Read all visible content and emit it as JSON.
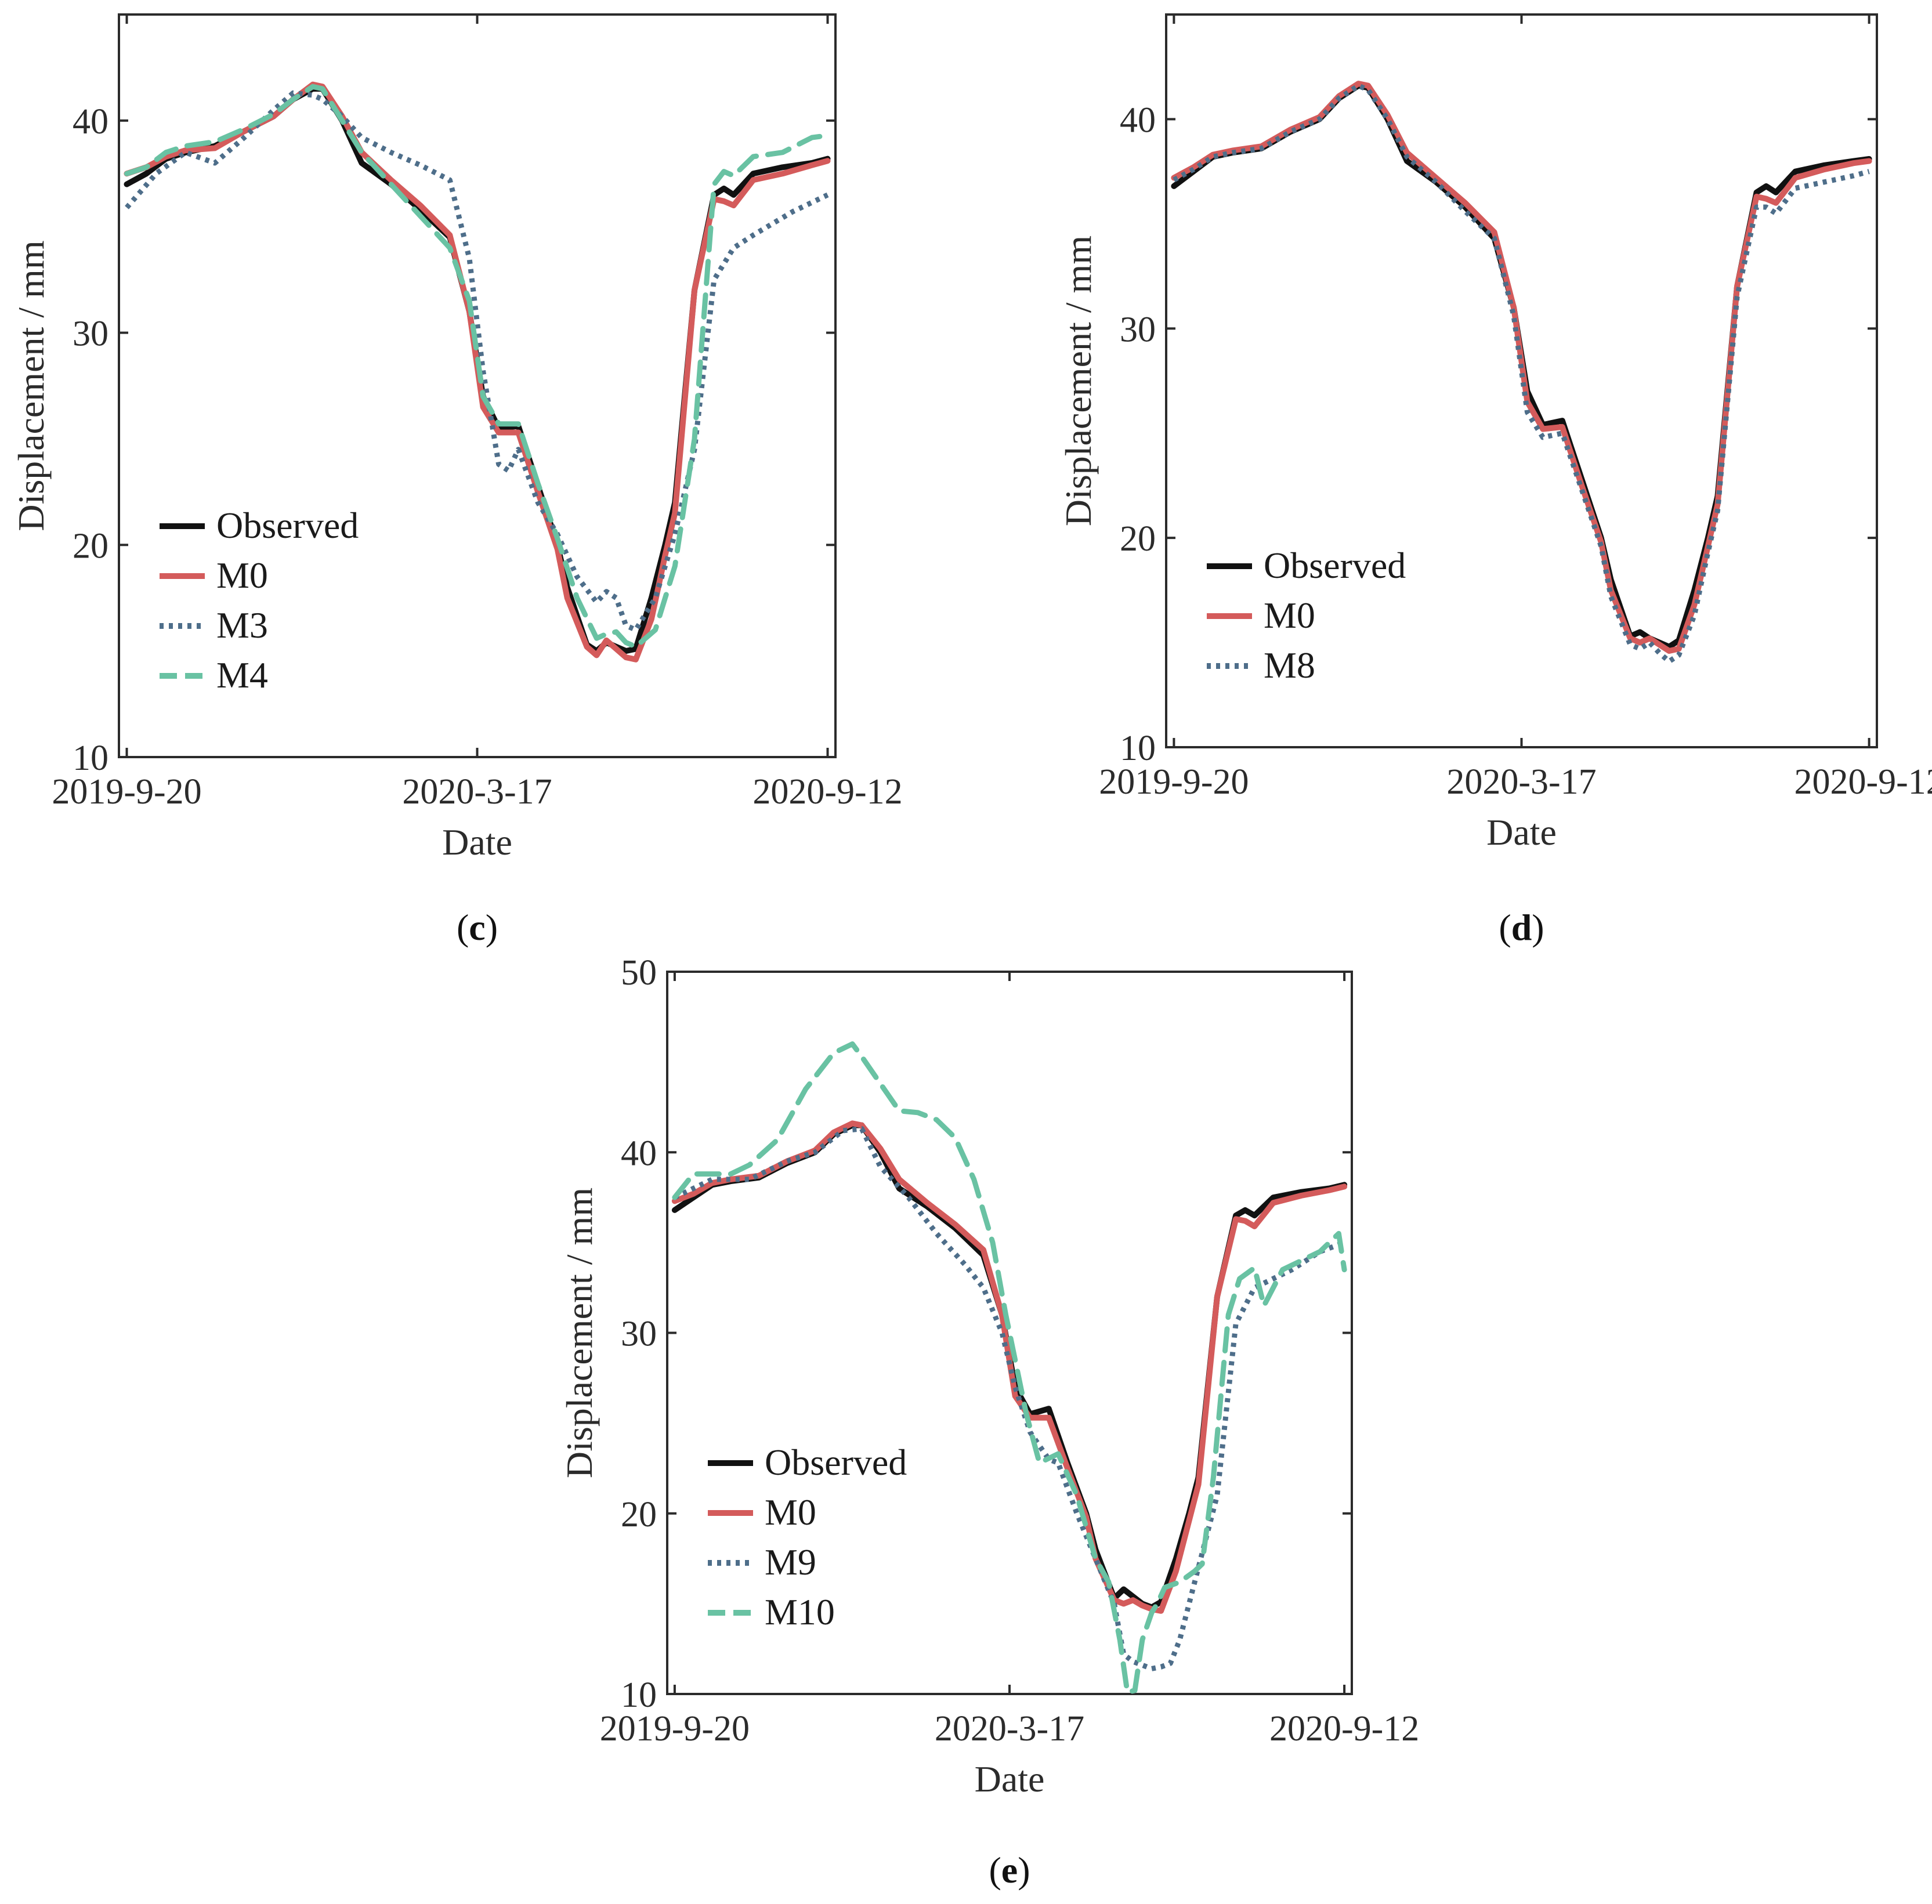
{
  "figure": {
    "colors": {
      "Observed": "#111111",
      "M0": "#d45b5b",
      "M3": "#4e6e8a",
      "M4": "#69c2a3",
      "M8": "#4e6e8a",
      "M9": "#4e6e8a",
      "M10": "#69c2a3"
    },
    "styles": {
      "Observed": "solid",
      "M0": "solid",
      "M3": "dotted",
      "M4": "dashed",
      "M8": "dotted",
      "M9": "dotted",
      "M10": "dashed"
    }
  },
  "chart_data": [
    {
      "id": "c",
      "panel_label": "c",
      "type": "line",
      "xlabel": "Date",
      "ylabel": "Displacement / mm",
      "ylim": [
        10,
        45
      ],
      "yticks": [
        10,
        20,
        30,
        40
      ],
      "xlim": [
        -4,
        362
      ],
      "xtick_positions": [
        0,
        179,
        358
      ],
      "xtick_labels": [
        "2019-9-20",
        "2020-3-17",
        "2020-9-12"
      ],
      "legend_position": "lower-left",
      "series": [
        {
          "name": "Observed",
          "x": [
            0,
            10,
            20,
            30,
            45,
            60,
            75,
            85,
            95,
            100,
            110,
            120,
            135,
            150,
            165,
            175,
            182,
            190,
            200,
            210,
            220,
            225,
            235,
            240,
            245,
            250,
            255,
            260,
            268,
            275,
            280,
            290,
            300,
            305,
            310,
            320,
            335,
            350,
            358
          ],
          "y": [
            37,
            37.5,
            38.2,
            38.5,
            38.8,
            39.5,
            40.2,
            41,
            41.5,
            41.5,
            40,
            38,
            37,
            35.8,
            34.5,
            31,
            27,
            25.5,
            25.6,
            22.8,
            20,
            18,
            15.3,
            15,
            15.4,
            15.2,
            15,
            15.1,
            17.5,
            20,
            22,
            32,
            36.5,
            36.8,
            36.5,
            37.5,
            37.8,
            38,
            38.2
          ]
        },
        {
          "name": "M0",
          "x": [
            0,
            10,
            20,
            30,
            45,
            60,
            75,
            85,
            95,
            100,
            110,
            120,
            135,
            150,
            165,
            175,
            182,
            190,
            200,
            210,
            220,
            225,
            235,
            240,
            245,
            250,
            255,
            260,
            268,
            275,
            280,
            290,
            300,
            305,
            310,
            320,
            335,
            350,
            358
          ],
          "y": [
            37.5,
            37.8,
            38.3,
            38.6,
            38.7,
            39.5,
            40.2,
            41,
            41.7,
            41.6,
            40.2,
            38.5,
            37.2,
            36,
            34.6,
            31,
            26.5,
            25.3,
            25.3,
            22.5,
            19.8,
            17.5,
            15.2,
            14.8,
            15.5,
            15.1,
            14.7,
            14.6,
            16.5,
            19.5,
            21.5,
            32,
            36.3,
            36.2,
            36,
            37.2,
            37.5,
            37.9,
            38.1
          ]
        },
        {
          "name": "M3",
          "x": [
            0,
            15,
            30,
            45,
            60,
            75,
            85,
            95,
            100,
            110,
            120,
            135,
            150,
            165,
            175,
            182,
            190,
            195,
            200,
            210,
            220,
            230,
            240,
            245,
            250,
            255,
            260,
            270,
            280,
            290,
            300,
            310,
            320,
            340,
            358
          ],
          "y": [
            35.9,
            37.5,
            38.5,
            38,
            39.2,
            40.5,
            41.3,
            41.2,
            41,
            40.2,
            39.2,
            38.5,
            37.9,
            37.2,
            33.5,
            28.2,
            23.8,
            23.5,
            24.5,
            22,
            20.5,
            18.5,
            17.3,
            17.8,
            17.5,
            16.2,
            16,
            17.5,
            20.5,
            24.5,
            32.5,
            34,
            34.6,
            35.7,
            36.5
          ]
        },
        {
          "name": "M4",
          "x": [
            0,
            10,
            20,
            30,
            45,
            60,
            75,
            85,
            95,
            100,
            110,
            120,
            135,
            150,
            165,
            175,
            182,
            190,
            200,
            210,
            220,
            230,
            240,
            245,
            250,
            255,
            260,
            270,
            280,
            290,
            300,
            305,
            310,
            320,
            335,
            350,
            358
          ],
          "y": [
            37.5,
            37.8,
            38.5,
            38.8,
            39,
            39.6,
            40.3,
            41,
            41.6,
            41.5,
            40,
            38.5,
            37,
            35.5,
            34,
            31.5,
            27,
            25.7,
            25.7,
            22.9,
            20.3,
            17.5,
            15.6,
            15.8,
            15.9,
            15.4,
            15.2,
            16,
            19,
            25,
            37,
            37.6,
            37.4,
            38.3,
            38.5,
            39.2,
            39.3
          ]
        }
      ]
    },
    {
      "id": "d",
      "panel_label": "d",
      "type": "line",
      "xlabel": "Date",
      "ylabel": "Displacement / mm",
      "ylim": [
        10,
        45
      ],
      "yticks": [
        10,
        20,
        30,
        40
      ],
      "xlim": [
        -4,
        362
      ],
      "xtick_positions": [
        0,
        179,
        358
      ],
      "xtick_labels": [
        "2019-9-20",
        "2020-3-17",
        "2020-9-12"
      ],
      "legend_position": "lower-left",
      "series": [
        {
          "name": "Observed",
          "x": [
            0,
            10,
            20,
            30,
            45,
            60,
            75,
            85,
            95,
            100,
            110,
            120,
            135,
            150,
            165,
            175,
            182,
            190,
            200,
            210,
            220,
            225,
            235,
            240,
            245,
            250,
            255,
            260,
            268,
            275,
            280,
            290,
            300,
            305,
            310,
            320,
            335,
            350,
            358
          ],
          "y": [
            36.8,
            37.5,
            38.2,
            38.4,
            38.6,
            39.4,
            40,
            41,
            41.6,
            41.5,
            40,
            38,
            37,
            35.8,
            34.3,
            31,
            27,
            25.4,
            25.6,
            22.8,
            20,
            18,
            15.3,
            15.5,
            15.2,
            15,
            14.8,
            15.1,
            17.5,
            20,
            22,
            32,
            36.5,
            36.8,
            36.5,
            37.5,
            37.8,
            38,
            38.1
          ]
        },
        {
          "name": "M0",
          "x": [
            0,
            10,
            20,
            30,
            45,
            60,
            75,
            85,
            95,
            100,
            110,
            120,
            135,
            150,
            165,
            175,
            182,
            190,
            200,
            210,
            220,
            225,
            235,
            240,
            245,
            250,
            255,
            260,
            268,
            275,
            280,
            290,
            300,
            305,
            310,
            320,
            335,
            350,
            358
          ],
          "y": [
            37.2,
            37.7,
            38.3,
            38.5,
            38.7,
            39.5,
            40.1,
            41.1,
            41.7,
            41.6,
            40.2,
            38.4,
            37.2,
            36,
            34.6,
            31,
            26.5,
            25.2,
            25.3,
            22.5,
            19.8,
            17.5,
            15.2,
            15,
            15.2,
            14.9,
            14.6,
            14.7,
            16.8,
            19.6,
            21.6,
            32,
            36.3,
            36.2,
            36,
            37.2,
            37.6,
            37.9,
            38
          ]
        },
        {
          "name": "M8",
          "x": [
            0,
            10,
            20,
            30,
            45,
            60,
            75,
            85,
            95,
            100,
            110,
            120,
            135,
            150,
            165,
            175,
            182,
            190,
            200,
            210,
            220,
            225,
            235,
            240,
            245,
            250,
            255,
            260,
            268,
            275,
            280,
            290,
            300,
            305,
            310,
            320,
            335,
            350,
            358
          ],
          "y": [
            37.1,
            37.6,
            38.2,
            38.4,
            38.6,
            39.4,
            40,
            41,
            41.6,
            41.4,
            40,
            38.2,
            37,
            35.6,
            34.3,
            30.6,
            26,
            24.8,
            25,
            22.3,
            19.6,
            17.2,
            14.9,
            14.7,
            15,
            14.5,
            14.1,
            14.4,
            16.3,
            19.3,
            21.3,
            31.5,
            35.8,
            35.8,
            35.5,
            36.7,
            37,
            37.3,
            37.5
          ]
        }
      ]
    },
    {
      "id": "e",
      "panel_label": "e",
      "type": "line",
      "xlabel": "Date",
      "ylabel": "Displacement / mm",
      "ylim": [
        10,
        50
      ],
      "yticks": [
        10,
        20,
        30,
        40,
        50
      ],
      "xlim": [
        -4,
        362
      ],
      "xtick_positions": [
        0,
        179,
        358
      ],
      "xtick_labels": [
        "2019-9-20",
        "2020-3-17",
        "2020-9-12"
      ],
      "legend_position": "lower-left",
      "series": [
        {
          "name": "Observed",
          "x": [
            0,
            10,
            20,
            30,
            45,
            60,
            75,
            85,
            95,
            100,
            110,
            120,
            135,
            150,
            165,
            175,
            182,
            190,
            200,
            210,
            220,
            225,
            235,
            240,
            245,
            250,
            255,
            260,
            268,
            275,
            280,
            290,
            300,
            305,
            310,
            320,
            335,
            350,
            358
          ],
          "y": [
            36.8,
            37.5,
            38.2,
            38.4,
            38.6,
            39.4,
            40,
            41,
            41.5,
            41.5,
            40,
            38,
            37,
            35.8,
            34.3,
            31,
            27,
            25.5,
            25.8,
            22.8,
            20,
            18,
            15.3,
            15.8,
            15.4,
            15,
            14.8,
            15.1,
            17.5,
            20,
            22,
            32,
            36.5,
            36.8,
            36.5,
            37.5,
            37.8,
            38,
            38.2
          ]
        },
        {
          "name": "M0",
          "x": [
            0,
            10,
            20,
            30,
            45,
            60,
            75,
            85,
            95,
            100,
            110,
            120,
            135,
            150,
            165,
            175,
            182,
            190,
            200,
            210,
            220,
            225,
            235,
            240,
            245,
            250,
            255,
            260,
            268,
            275,
            280,
            290,
            300,
            305,
            310,
            320,
            335,
            350,
            358
          ],
          "y": [
            37.3,
            37.7,
            38.3,
            38.5,
            38.7,
            39.5,
            40.1,
            41.1,
            41.6,
            41.5,
            40.2,
            38.5,
            37.2,
            36,
            34.6,
            31,
            26.5,
            25.3,
            25.3,
            22.5,
            19.8,
            17.5,
            15.2,
            15,
            15.2,
            14.9,
            14.7,
            14.6,
            16.8,
            19.6,
            21.6,
            32,
            36.3,
            36.2,
            35.9,
            37.2,
            37.6,
            37.9,
            38.1
          ]
        },
        {
          "name": "M9",
          "x": [
            0,
            20,
            40,
            60,
            75,
            90,
            100,
            110,
            125,
            140,
            155,
            165,
            175,
            182,
            190,
            200,
            205,
            215,
            225,
            235,
            240,
            245,
            250,
            255,
            260,
            265,
            270,
            280,
            290,
            300,
            310,
            320,
            330,
            345,
            358
          ],
          "y": [
            37.5,
            38.5,
            38.5,
            39.5,
            40,
            41.2,
            41.3,
            39.2,
            37.5,
            35.5,
            33.8,
            32.5,
            30,
            27,
            24.5,
            23,
            22.8,
            20,
            17.5,
            15,
            12.2,
            11.8,
            11.6,
            11.4,
            11.5,
            11.7,
            13,
            17,
            21,
            30.5,
            32.5,
            33,
            33.5,
            34.5,
            35
          ]
        },
        {
          "name": "M10",
          "x": [
            0,
            10,
            20,
            30,
            40,
            55,
            70,
            85,
            95,
            100,
            110,
            120,
            130,
            140,
            150,
            160,
            170,
            177,
            182,
            188,
            195,
            205,
            215,
            225,
            232,
            238,
            242,
            246,
            250,
            255,
            258,
            262,
            270,
            278,
            282,
            288,
            296,
            302,
            310,
            315,
            325,
            335,
            345,
            355,
            358
          ],
          "y": [
            37.5,
            38.8,
            38.8,
            38.8,
            39.3,
            40.7,
            43.5,
            45.5,
            46,
            45.3,
            43.8,
            42.3,
            42.2,
            41.8,
            40.8,
            38.5,
            35,
            31,
            28.5,
            25.5,
            22.8,
            23.3,
            21,
            17.5,
            16.2,
            13,
            10.1,
            10.2,
            13,
            14.5,
            15,
            15.9,
            16.2,
            16.8,
            17.2,
            22,
            31,
            33,
            33.6,
            31.5,
            33.5,
            34,
            34.5,
            35.5,
            33.5
          ]
        }
      ]
    }
  ]
}
